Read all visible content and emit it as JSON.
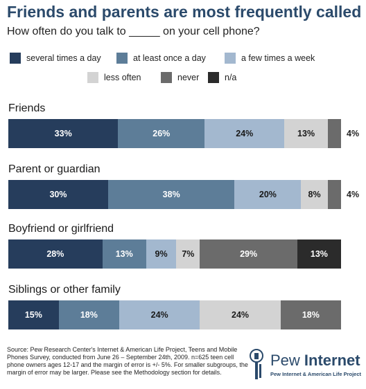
{
  "title": "Friends and parents are most frequently called",
  "subtitle": "How often do you talk to _____ on your cell phone?",
  "legend": [
    {
      "label": "several times a day",
      "color": "#263d5c"
    },
    {
      "label": "at least once a day",
      "color": "#5d7d98"
    },
    {
      "label": "a few times a week",
      "color": "#a3b8cf"
    },
    {
      "label": "less often",
      "color": "#d3d3d3"
    },
    {
      "label": "never",
      "color": "#6b6b6b"
    },
    {
      "label": "n/a",
      "color": "#2b2b2b"
    }
  ],
  "chart_data": {
    "type": "bar",
    "orientation": "horizontal",
    "stacked": true,
    "categories": [
      "Friends",
      "Parent or guardian",
      "Boyfriend or girlfriend",
      "Siblings or other family"
    ],
    "series": [
      {
        "name": "several times a day",
        "values": [
          33,
          30,
          28,
          15
        ],
        "labels": [
          "33%",
          "30%",
          "28%",
          "15%"
        ]
      },
      {
        "name": "at least once a day",
        "values": [
          26,
          38,
          13,
          18
        ],
        "labels": [
          "26%",
          "38%",
          "13%",
          "18%"
        ]
      },
      {
        "name": "a few times a week",
        "values": [
          24,
          20,
          9,
          24
        ],
        "labels": [
          "24%",
          "20%",
          "9%",
          "24%"
        ]
      },
      {
        "name": "less often",
        "values": [
          13,
          8,
          7,
          24
        ],
        "labels": [
          "13%",
          "8%",
          "7%",
          "24%"
        ]
      },
      {
        "name": "never",
        "values": [
          4,
          4,
          29,
          18
        ],
        "labels": [
          "4%",
          "4%",
          "29%",
          "18%"
        ]
      },
      {
        "name": "n/a",
        "values": [
          0,
          0,
          13,
          0
        ],
        "labels": [
          "",
          "",
          "13%",
          ""
        ]
      }
    ]
  },
  "source": "Source: Pew Research Center's Internet & American Life Project, Teens and Mobile Phones Survey, conducted from June 26 – September 24th, 2009. n=625 teen cell phone owners ages 12-17 and the margin of error is +/- 5%. For smaller subgroups, the margin of error may be larger. Please see the Methodology section for details.",
  "logo": {
    "word_light": "Pew ",
    "word_bold": "Internet",
    "tagline": "Pew Internet & American Life Project"
  }
}
